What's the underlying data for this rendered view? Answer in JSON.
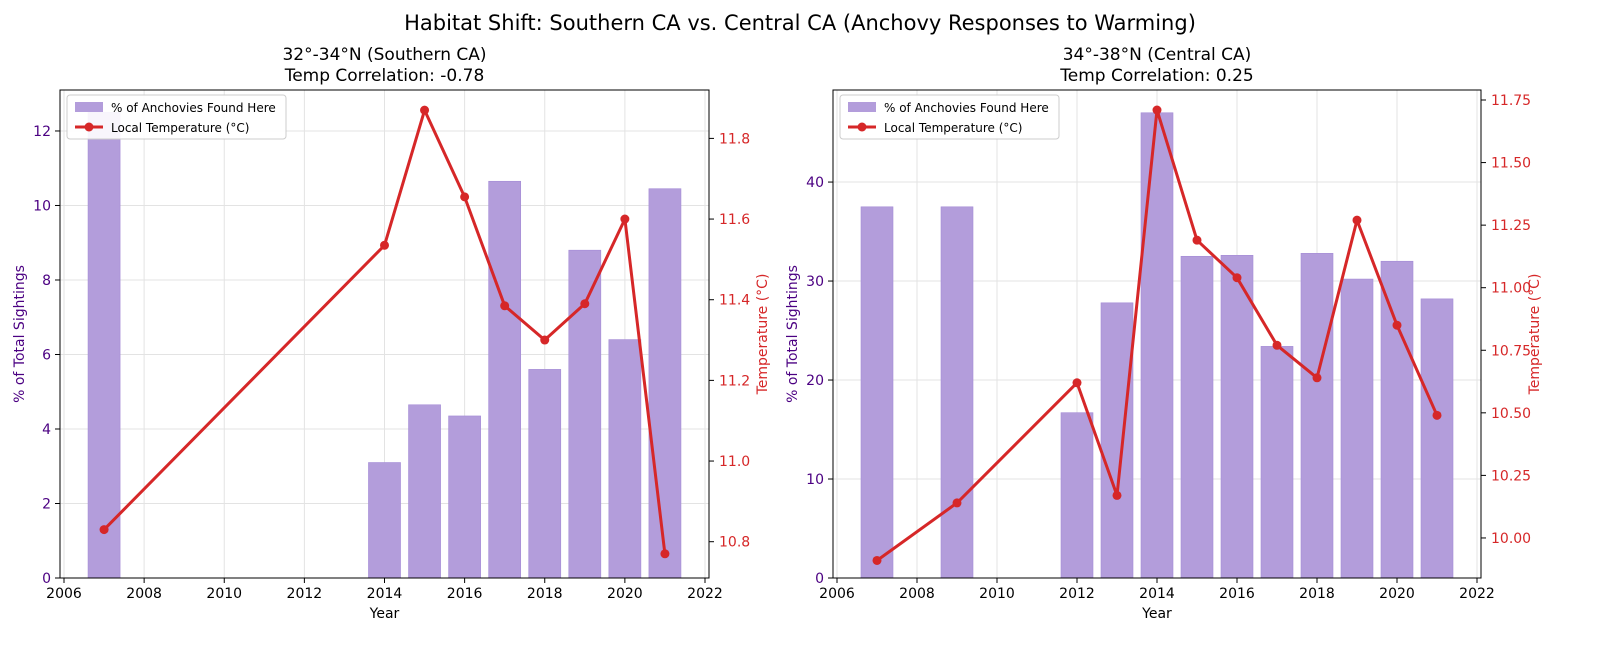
{
  "suptitle": "Habitat Shift: Southern CA vs. Central CA (Anchovy Responses to Warming)",
  "colors": {
    "bar": "#b39ddb",
    "bar_edge": "#a48bd6",
    "line": "#d62728",
    "left_axis": "#4b0082",
    "right_axis": "#d62728",
    "grid": "#e3e3e3",
    "text": "#000000"
  },
  "chart_data": [
    {
      "type": "bar",
      "title": "32°-34°N (Southern CA)",
      "subtitle": "Temp Correlation: -0.78",
      "xlabel": "Year",
      "ylabel": "% of Total Sightings",
      "y2label": "Temperature (°C)",
      "xlim": [
        2005.9,
        2022.1
      ],
      "xticks": [
        2006,
        2008,
        2010,
        2012,
        2014,
        2016,
        2018,
        2020,
        2022
      ],
      "ylim": [
        0,
        13.1
      ],
      "yticks": [
        0,
        2,
        4,
        6,
        8,
        10,
        12
      ],
      "y2lim": [
        10.71,
        11.92
      ],
      "y2ticks": [
        10.8,
        11.0,
        11.2,
        11.4,
        11.6,
        11.8
      ],
      "y2tick_labels": [
        "10.8",
        "11.0",
        "11.2",
        "11.4",
        "11.6",
        "11.8"
      ],
      "grid": true,
      "legend_position": "top-left",
      "bars": {
        "name": "% of Anchovies Found Here",
        "x": [
          2007,
          2014,
          2015,
          2016,
          2017,
          2018,
          2019,
          2020,
          2021
        ],
        "values": [
          12.5,
          3.1,
          4.65,
          4.35,
          10.65,
          5.6,
          8.8,
          6.4,
          10.45
        ]
      },
      "line": {
        "name": "Local Temperature (°C)",
        "x": [
          2007,
          2014,
          2015,
          2016,
          2017,
          2018,
          2019,
          2020,
          2021
        ],
        "values": [
          10.83,
          11.535,
          11.87,
          11.655,
          11.385,
          11.3,
          11.39,
          11.6,
          10.77
        ]
      }
    },
    {
      "type": "bar",
      "title": "34°-38°N (Central CA)",
      "subtitle": "Temp Correlation: 0.25",
      "xlabel": "Year",
      "ylabel": "% of Total Sightings",
      "y2label": "Temperature (°C)",
      "xlim": [
        2005.9,
        2022.1
      ],
      "xticks": [
        2006,
        2008,
        2010,
        2012,
        2014,
        2016,
        2018,
        2020,
        2022
      ],
      "ylim": [
        0,
        49.3
      ],
      "yticks": [
        0,
        10,
        20,
        30,
        40
      ],
      "y2lim": [
        9.84,
        11.79
      ],
      "y2ticks": [
        10.0,
        10.25,
        10.5,
        10.75,
        11.0,
        11.25,
        11.5,
        11.75
      ],
      "y2tick_labels": [
        "10.00",
        "10.25",
        "10.50",
        "10.75",
        "11.00",
        "11.25",
        "11.50",
        "11.75"
      ],
      "grid": true,
      "legend_position": "top-left",
      "bars": {
        "name": "% of Anchovies Found Here",
        "x": [
          2007,
          2009,
          2012,
          2013,
          2014,
          2015,
          2016,
          2017,
          2018,
          2019,
          2020,
          2021
        ],
        "values": [
          37.5,
          37.5,
          16.7,
          27.8,
          47.0,
          32.5,
          32.6,
          23.4,
          32.8,
          30.2,
          32.0,
          28.2
        ]
      },
      "line": {
        "name": "Local Temperature (°C)",
        "x": [
          2007,
          2009,
          2012,
          2013,
          2014,
          2015,
          2016,
          2017,
          2018,
          2019,
          2020,
          2021
        ],
        "values": [
          9.91,
          10.14,
          10.62,
          10.17,
          11.71,
          11.19,
          11.04,
          10.77,
          10.64,
          11.27,
          10.85,
          10.49
        ]
      }
    }
  ]
}
